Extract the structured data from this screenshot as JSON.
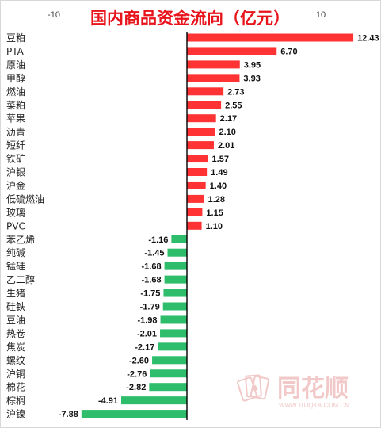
{
  "chart_data": {
    "type": "bar",
    "orientation": "horizontal",
    "title": "国内商品资金流向（亿元）",
    "xlim": [
      -10,
      10
    ],
    "x_ticks": [
      "-10",
      "10"
    ],
    "grid": false,
    "categories": [
      "豆粕",
      "PTA",
      "原油",
      "甲醇",
      "燃油",
      "菜粕",
      "苹果",
      "沥青",
      "短纤",
      "铁矿",
      "沪银",
      "沪金",
      "低硫燃油",
      "玻璃",
      "PVC",
      "苯乙烯",
      "纯碱",
      "锰硅",
      "乙二醇",
      "生猪",
      "硅铁",
      "豆油",
      "热卷",
      "焦炭",
      "螺纹",
      "沪铜",
      "棉花",
      "棕榈",
      "沪镍"
    ],
    "values": [
      12.43,
      6.7,
      3.95,
      3.93,
      2.73,
      2.55,
      2.17,
      2.1,
      2.01,
      1.57,
      1.49,
      1.4,
      1.28,
      1.15,
      1.1,
      -1.16,
      -1.45,
      -1.68,
      -1.68,
      -1.75,
      -1.79,
      -1.98,
      -2.01,
      -2.17,
      -2.6,
      -2.76,
      -2.82,
      -4.91,
      -7.88
    ],
    "value_labels": [
      "12.43",
      "6.70",
      "3.95",
      "3.93",
      "2.73",
      "2.55",
      "2.17",
      "2.10",
      "2.01",
      "1.57",
      "1.49",
      "1.40",
      "1.28",
      "1.15",
      "1.10",
      "-1.16",
      "-1.45",
      "-1.68",
      "-1.68",
      "-1.75",
      "-1.79",
      "-1.98",
      "-2.01",
      "-2.17",
      "-2.60",
      "-2.76",
      "-2.82",
      "-4.91",
      "-7.88"
    ],
    "colors": {
      "positive": "#ff3333",
      "negative": "#2ebd6b",
      "title": "#e8141b"
    }
  },
  "watermark": {
    "name": "同花顺",
    "url": "WWW.10JQKA.COM.CN",
    "color": "#f2c9c9",
    "icon": "card-fan-icon"
  }
}
